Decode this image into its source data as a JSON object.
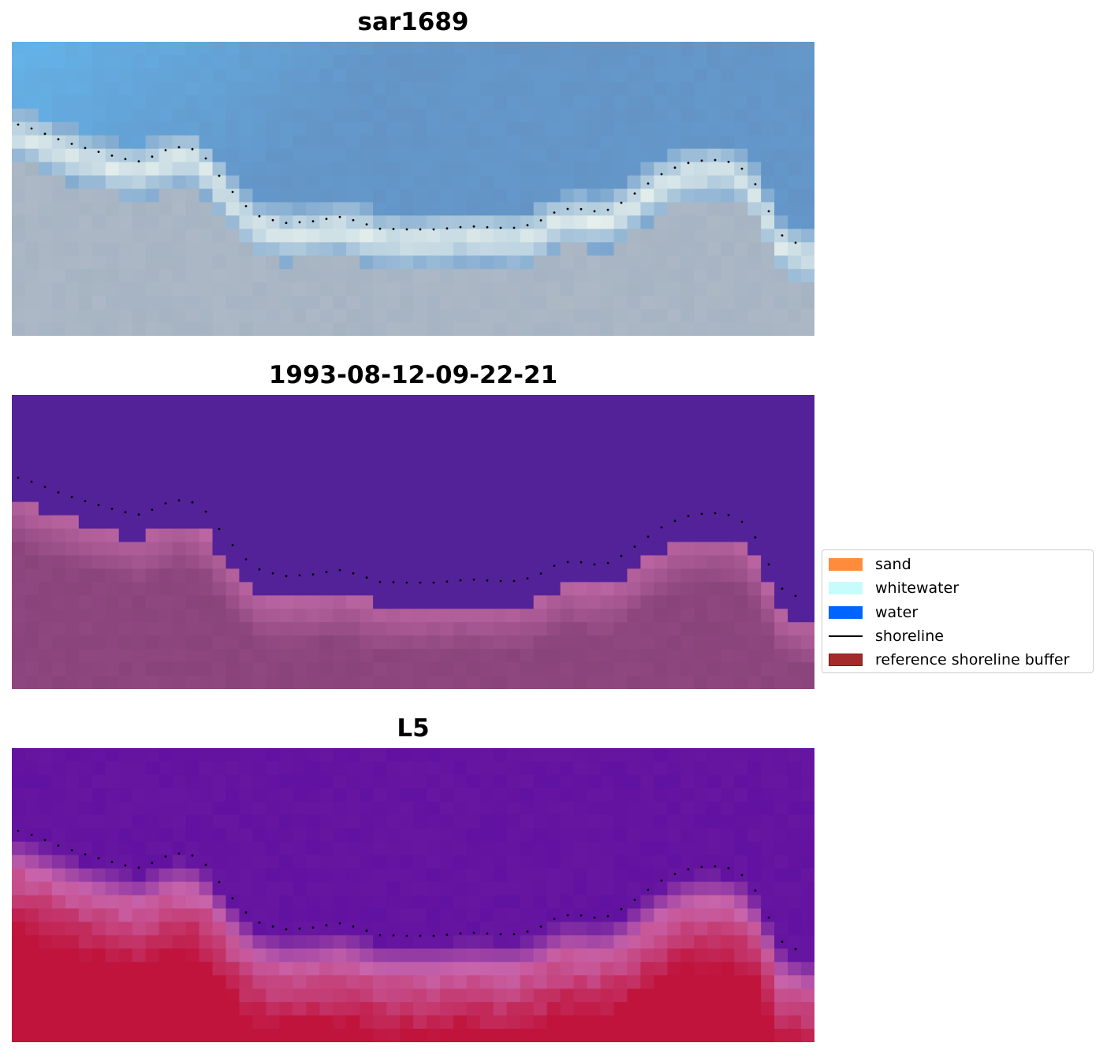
{
  "panels": [
    {
      "title": "sar1689",
      "style": "rgb"
    },
    {
      "title": "1993-08-12-09-22-21",
      "style": "classified"
    },
    {
      "title": "L5",
      "style": "index"
    }
  ],
  "legend": {
    "items": [
      {
        "label": "sand",
        "color": "#ff8c3c",
        "kind": "patch"
      },
      {
        "label": "whitewater",
        "color": "#c8fbfb",
        "kind": "patch"
      },
      {
        "label": "water",
        "color": "#0064ff",
        "kind": "patch"
      },
      {
        "label": "shoreline",
        "color": "#000000",
        "kind": "line"
      },
      {
        "label": "reference shoreline buffer",
        "color": "#a52a2a",
        "kind": "patch"
      }
    ]
  },
  "colors": {
    "classified_water": "#542298",
    "classified_buffer": "#a04d8c",
    "index_water": "#5a0aa0",
    "index_land": "#c01040"
  }
}
